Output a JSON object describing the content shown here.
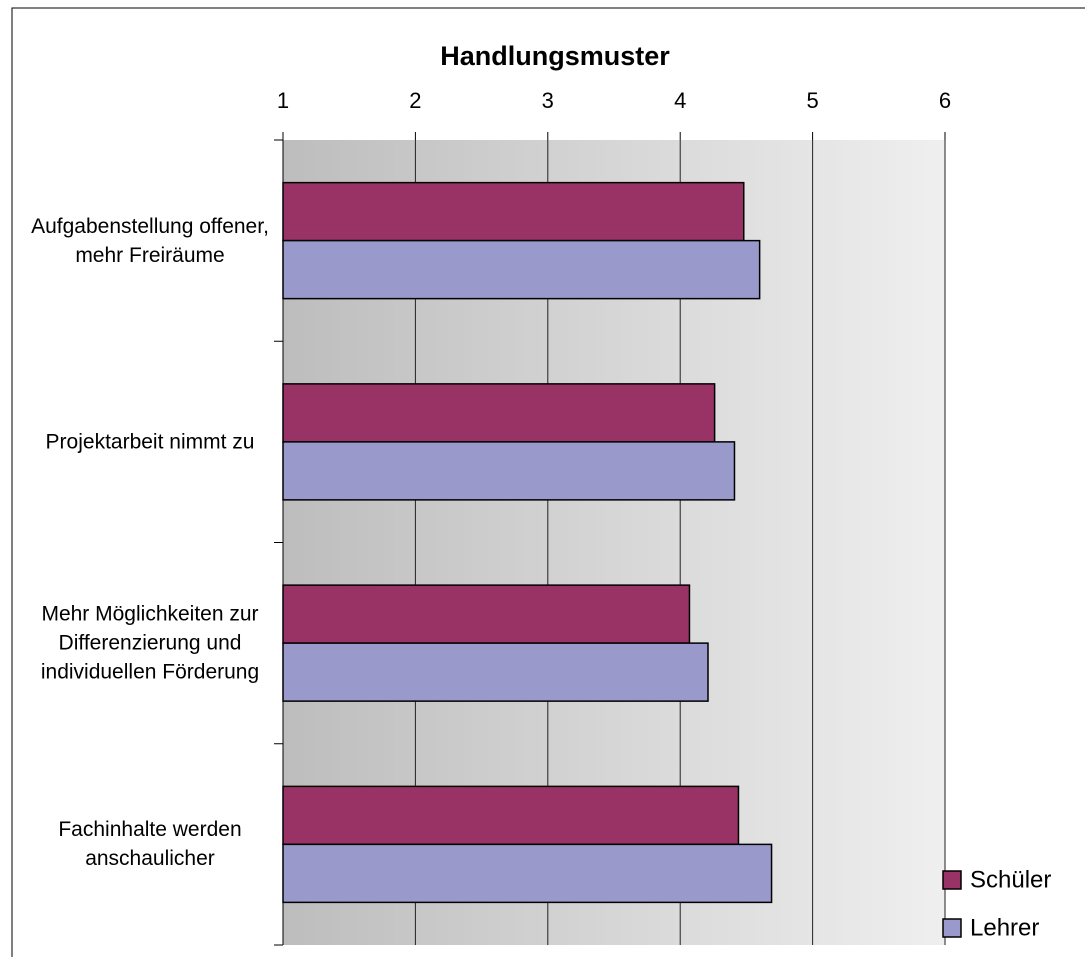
{
  "chart_data": {
    "type": "hbar",
    "title": "Handlungsmuster",
    "categories": [
      "Aufgabenstellung offener, mehr Freiräume",
      "Projektarbeit nimmt zu",
      "Mehr Möglichkeiten zur Differenzierung und individuellen Förderung",
      "Fachinhalte werden anschaulicher"
    ],
    "series": [
      {
        "name": "Schüler",
        "color": "#993366",
        "values": [
          4.48,
          4.26,
          4.07,
          4.44
        ]
      },
      {
        "name": "Lehrer",
        "color": "#9999cc",
        "values": [
          4.6,
          4.41,
          4.21,
          4.69
        ]
      }
    ],
    "xlim": [
      1,
      6
    ],
    "xticks": [
      1,
      2,
      3,
      4,
      5,
      6
    ],
    "grid": true,
    "legend": "bottom-right"
  }
}
